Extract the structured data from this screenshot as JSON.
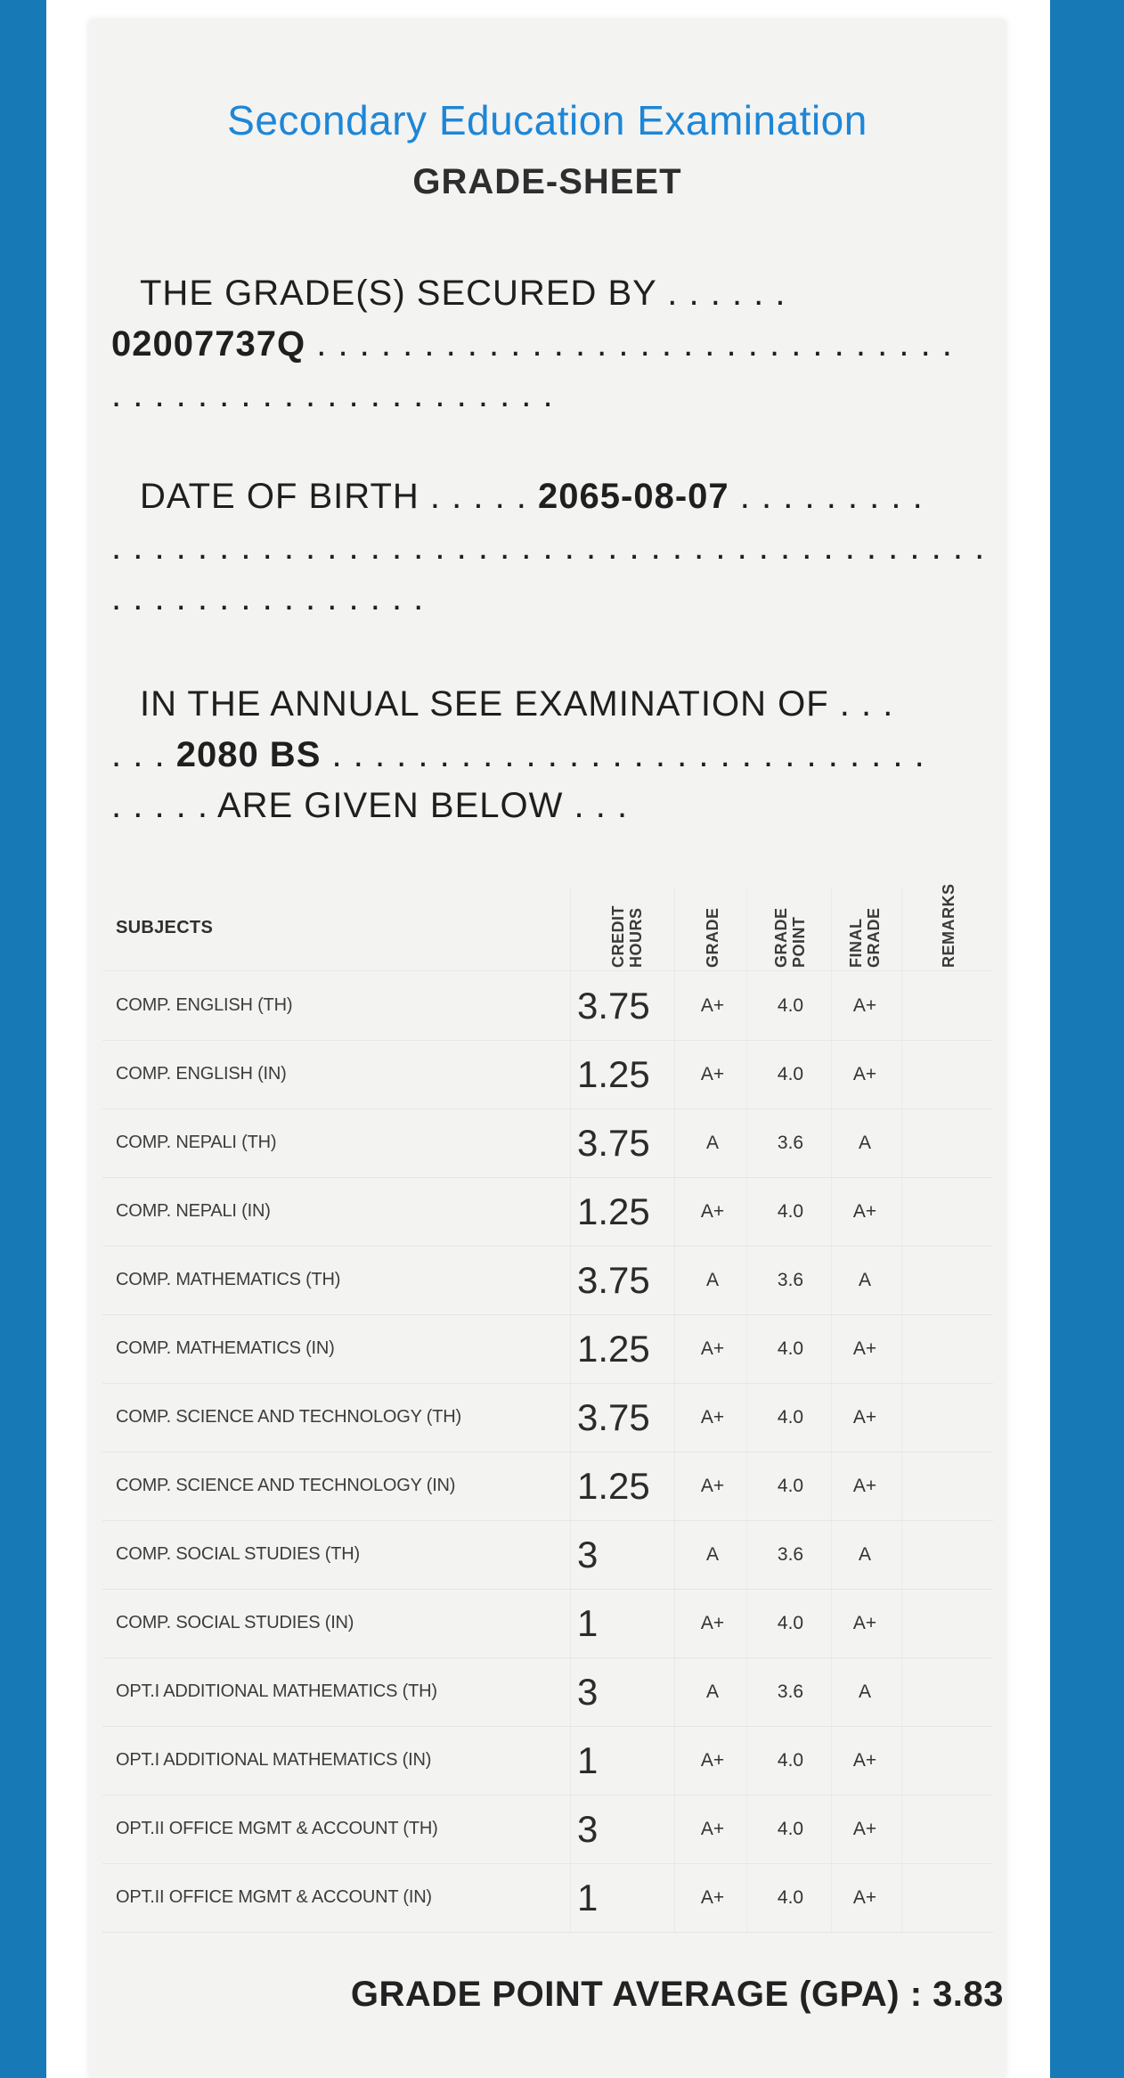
{
  "theme": {
    "side_bar_color": "#177ab6",
    "document_background": "#f3f3f2",
    "title_color": "#1e86d6",
    "text_color": "#1f1f1f"
  },
  "document": {
    "title": "Secondary Education Examination",
    "subtitle": "GRADE-SHEET",
    "statement": {
      "secured_prefix": "THE GRADE(S) SECURED BY",
      "secured_dots": ". . . . . .",
      "student_symbol_no": "02007737Q",
      "secured_fill_dots": ". . . . . . . . . . . . . . . . . . . . . . . . . . . . . .",
      "secured_tail_dots": ". . . . . . . . . . . . . . . . . . . . .",
      "dob_label": "DATE OF BIRTH",
      "dob_mid_dots": ". . . . .",
      "date_of_birth": "2065-08-07",
      "dob_after_dots": ". . . . . . . . .",
      "dob_fill_dots": ". . . . . . . . . . . . . . . . . . . . . . . . . . . . . . . . . . . . . . . . . . . . .",
      "dob_short_dots": ". . . . . . . . . . . . . . .",
      "exam_prefix": "IN THE ANNUAL SEE EXAMINATION OF",
      "exam_dots": ". . .",
      "exam_year_lead_dots": ". . .",
      "exam_year": "2080 BS",
      "exam_year_tail_dots": ". . . . . . . . . . . . . . . . . . . . . . . . . . . .",
      "given_lead_dots": ". . . . .",
      "given_text": "ARE GIVEN BELOW",
      "given_tail_dots": ". . ."
    },
    "table": {
      "subjects_header": "SUBJECTS",
      "col_headers": [
        {
          "label": "CREDIT\nHOURS"
        },
        {
          "label": "GRADE"
        },
        {
          "label": "GRADE\nPOINT"
        },
        {
          "label": "FINAL\nGRADE"
        },
        {
          "label": "REMARKS"
        }
      ],
      "rows": [
        {
          "subject": "COMP. ENGLISH (TH)",
          "credit": "3.75",
          "grade": "A+",
          "point": "4.0",
          "final": "A+",
          "remarks": ""
        },
        {
          "subject": "COMP. ENGLISH (IN)",
          "credit": "1.25",
          "grade": "A+",
          "point": "4.0",
          "final": "A+",
          "remarks": ""
        },
        {
          "subject": "COMP. NEPALI (TH)",
          "credit": "3.75",
          "grade": "A",
          "point": "3.6",
          "final": "A",
          "remarks": ""
        },
        {
          "subject": "COMP. NEPALI (IN)",
          "credit": "1.25",
          "grade": "A+",
          "point": "4.0",
          "final": "A+",
          "remarks": ""
        },
        {
          "subject": "COMP. MATHEMATICS (TH)",
          "credit": "3.75",
          "grade": "A",
          "point": "3.6",
          "final": "A",
          "remarks": ""
        },
        {
          "subject": "COMP. MATHEMATICS (IN)",
          "credit": "1.25",
          "grade": "A+",
          "point": "4.0",
          "final": "A+",
          "remarks": ""
        },
        {
          "subject": "COMP. SCIENCE AND TECHNOLOGY (TH)",
          "credit": "3.75",
          "grade": "A+",
          "point": "4.0",
          "final": "A+",
          "remarks": ""
        },
        {
          "subject": "COMP. SCIENCE AND TECHNOLOGY (IN)",
          "credit": "1.25",
          "grade": "A+",
          "point": "4.0",
          "final": "A+",
          "remarks": ""
        },
        {
          "subject": "COMP. SOCIAL STUDIES (TH)",
          "credit": "3",
          "grade": "A",
          "point": "3.6",
          "final": "A",
          "remarks": ""
        },
        {
          "subject": "COMP. SOCIAL STUDIES (IN)",
          "credit": "1",
          "grade": "A+",
          "point": "4.0",
          "final": "A+",
          "remarks": ""
        },
        {
          "subject": "OPT.I ADDITIONAL MATHEMATICS (TH)",
          "credit": "3",
          "grade": "A",
          "point": "3.6",
          "final": "A",
          "remarks": ""
        },
        {
          "subject": "OPT.I ADDITIONAL MATHEMATICS (IN)",
          "credit": "1",
          "grade": "A+",
          "point": "4.0",
          "final": "A+",
          "remarks": ""
        },
        {
          "subject": "OPT.II OFFICE MGMT & ACCOUNT (TH)",
          "credit": "3",
          "grade": "A+",
          "point": "4.0",
          "final": "A+",
          "remarks": ""
        },
        {
          "subject": "OPT.II OFFICE MGMT & ACCOUNT (IN)",
          "credit": "1",
          "grade": "A+",
          "point": "4.0",
          "final": "A+",
          "remarks": ""
        }
      ]
    },
    "footer": {
      "gpa_line": "GRADE POINT AVERAGE (GPA) : 3.83"
    }
  }
}
